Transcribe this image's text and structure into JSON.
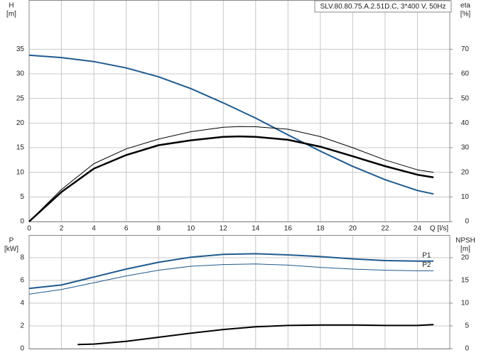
{
  "chart_data": [
    {
      "type": "line",
      "title": "SLV.80.80.75.A.2.51D.C, 3*400 V, 50Hz",
      "y_label": "H",
      "y_unit": "[m]",
      "y2_label": "eta",
      "y2_unit": "[%]",
      "x_label": "Q [l/s]",
      "xlim": [
        0,
        26
      ],
      "xticks": [
        0,
        2,
        4,
        6,
        8,
        10,
        12,
        14,
        16,
        18,
        20,
        22,
        24
      ],
      "ylim": [
        0,
        45
      ],
      "yticks": [
        0,
        5,
        10,
        15,
        20,
        25,
        30,
        35
      ],
      "y2lim": [
        0,
        90
      ],
      "y2ticks": [
        0,
        10,
        20,
        30,
        40,
        50,
        60,
        70
      ],
      "grid": true,
      "series": [
        {
          "color": "#1f5a8f",
          "line_width": 2,
          "x": [
            0,
            2,
            4,
            6,
            8,
            10,
            12,
            14,
            16,
            18,
            20,
            22,
            24,
            25
          ],
          "values": [
            33.8,
            33.3,
            32.5,
            31.2,
            29.4,
            27,
            24.1,
            21,
            17.6,
            14.3,
            11.2,
            8.5,
            6.3,
            5.6
          ]
        },
        {
          "color": "#000000",
          "line_width": 1,
          "axis": "y2",
          "x": [
            0,
            2,
            4,
            6,
            8,
            10,
            12,
            13,
            14,
            16,
            18,
            20,
            22,
            24,
            25
          ],
          "values": [
            0,
            13,
            23.5,
            29.5,
            33.5,
            36.5,
            38.3,
            38.6,
            38.5,
            37.5,
            34.5,
            30,
            25,
            21,
            20
          ]
        },
        {
          "color": "#000000",
          "line_width": 2.5,
          "axis": "y2",
          "x": [
            0,
            2,
            4,
            6,
            8,
            10,
            12,
            13,
            14,
            16,
            18,
            20,
            22,
            24,
            25
          ],
          "values": [
            0,
            12,
            21.5,
            27,
            31,
            33,
            34.4,
            34.6,
            34.4,
            33.2,
            30.4,
            26.5,
            22.5,
            19,
            17.9
          ]
        }
      ]
    },
    {
      "type": "line",
      "y_label": "P",
      "y_unit": "[kW]",
      "y2_label": "NPSH",
      "y2_unit": "[m]",
      "xlim": [
        0,
        26
      ],
      "xticks": [
        0,
        2,
        4,
        6,
        8,
        10,
        12,
        14,
        16,
        18,
        20,
        22,
        24
      ],
      "ylim": [
        0,
        10
      ],
      "yticks": [
        0,
        2,
        4,
        6,
        8
      ],
      "y2lim": [
        0,
        25
      ],
      "y2ticks": [
        0,
        5,
        10,
        15,
        20
      ],
      "grid": true,
      "series": [
        {
          "name": "P1",
          "color": "#1f5a8f",
          "line_width": 2,
          "x": [
            0,
            2,
            4,
            6,
            8,
            10,
            12,
            14,
            16,
            18,
            20,
            22,
            24,
            25
          ],
          "values": [
            5.3,
            5.6,
            6.3,
            7.0,
            7.6,
            8.05,
            8.3,
            8.35,
            8.25,
            8.1,
            7.9,
            7.75,
            7.7,
            7.7
          ]
        },
        {
          "name": "P2",
          "color": "#1f5a8f",
          "line_width": 1,
          "x": [
            0,
            2,
            4,
            6,
            8,
            10,
            12,
            14,
            16,
            18,
            20,
            22,
            24,
            25
          ],
          "values": [
            4.8,
            5.2,
            5.8,
            6.4,
            6.9,
            7.25,
            7.4,
            7.45,
            7.35,
            7.15,
            7.0,
            6.9,
            6.85,
            6.85
          ]
        },
        {
          "color": "#000000",
          "line_width": 2,
          "axis": "y2",
          "x": [
            3,
            4,
            6,
            8,
            10,
            12,
            14,
            16,
            18,
            20,
            22,
            24,
            25
          ],
          "values": [
            0.9,
            1.0,
            1.6,
            2.5,
            3.4,
            4.2,
            4.8,
            5.1,
            5.2,
            5.2,
            5.1,
            5.1,
            5.3
          ]
        }
      ]
    }
  ]
}
